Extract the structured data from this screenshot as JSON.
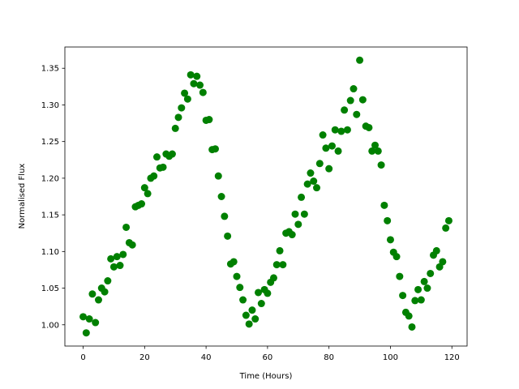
{
  "chart_data": {
    "type": "scatter",
    "x_label": "Time (Hours)",
    "y_label": "Normalised Flux",
    "color": "#008000",
    "x": [
      0,
      1,
      2,
      3,
      4,
      5,
      6,
      7,
      8,
      9,
      10,
      11,
      12,
      13,
      14,
      15,
      16,
      17,
      18,
      19,
      20,
      21,
      22,
      23,
      24,
      25,
      26,
      27,
      28,
      29,
      30,
      31,
      32,
      33,
      34,
      35,
      36,
      37,
      38,
      39,
      40,
      41,
      42,
      43,
      44,
      45,
      46,
      47,
      48,
      49,
      50,
      51,
      52,
      53,
      54,
      55,
      56,
      57,
      58,
      59,
      60,
      61,
      62,
      63,
      64,
      65,
      66,
      67,
      68,
      69,
      70,
      71,
      72,
      73,
      74,
      75,
      76,
      77,
      78,
      79,
      80,
      81,
      82,
      83,
      84,
      85,
      86,
      87,
      88,
      89,
      90,
      91,
      92,
      93,
      94,
      95,
      96,
      97,
      98,
      99,
      100,
      101,
      102,
      103,
      104,
      105,
      106,
      107,
      108,
      109,
      110,
      111,
      112,
      113,
      114,
      115,
      116,
      117,
      118,
      119
    ],
    "values": [
      1.011,
      0.989,
      1.008,
      1.042,
      1.003,
      1.034,
      1.05,
      1.045,
      1.06,
      1.09,
      1.079,
      1.093,
      1.081,
      1.096,
      1.133,
      1.112,
      1.109,
      1.161,
      1.163,
      1.165,
      1.187,
      1.179,
      1.2,
      1.203,
      1.229,
      1.214,
      1.215,
      1.233,
      1.23,
      1.233,
      1.268,
      1.283,
      1.296,
      1.316,
      1.308,
      1.341,
      1.329,
      1.339,
      1.327,
      1.317,
      1.279,
      1.28,
      1.239,
      1.24,
      1.203,
      1.175,
      1.148,
      1.121,
      1.083,
      1.086,
      1.066,
      1.051,
      1.034,
      1.013,
      1.001,
      1.02,
      1.008,
      1.044,
      1.029,
      1.048,
      1.043,
      1.058,
      1.064,
      1.082,
      1.101,
      1.082,
      1.125,
      1.127,
      1.123,
      1.151,
      1.137,
      1.174,
      1.151,
      1.192,
      1.207,
      1.196,
      1.187,
      1.22,
      1.259,
      1.241,
      1.213,
      1.244,
      1.266,
      1.237,
      1.264,
      1.293,
      1.266,
      1.306,
      1.322,
      1.287,
      1.361,
      1.307,
      1.271,
      1.269,
      1.237,
      1.245,
      1.237,
      1.218,
      1.163,
      1.142,
      1.116,
      1.099,
      1.093,
      1.066,
      1.04,
      1.017,
      1.012,
      0.997,
      1.033,
      1.048,
      1.034,
      1.059,
      1.05,
      1.07,
      1.095,
      1.101,
      1.079,
      1.086,
      1.132,
      1.142
    ],
    "xlim": [
      -5.95,
      124.95
    ],
    "xticks": [
      0,
      20,
      40,
      60,
      80,
      100,
      120
    ],
    "ylim": [
      0.971,
      1.379
    ],
    "yticks": [
      {
        "value": 1.0,
        "label": "1.00"
      },
      {
        "value": 1.05,
        "label": "1.05"
      },
      {
        "value": 1.1,
        "label": "1.10"
      },
      {
        "value": 1.15,
        "label": "1.15"
      },
      {
        "value": 1.2,
        "label": "1.20"
      },
      {
        "value": 1.25,
        "label": "1.25"
      },
      {
        "value": 1.3,
        "label": "1.30"
      },
      {
        "value": 1.35,
        "label": "1.35"
      }
    ]
  }
}
